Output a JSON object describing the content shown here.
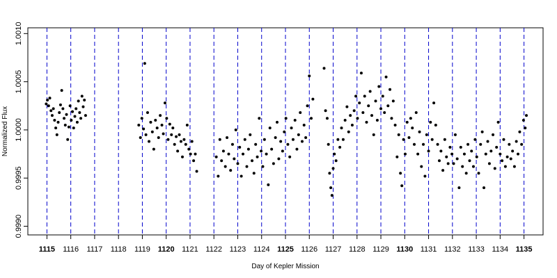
{
  "chart_data": {
    "type": "scatter",
    "x_label": "Day of Kepler Mission",
    "y_label": "Normalized Flux",
    "color": "#000000",
    "grid": true,
    "grid_color": "#0000cc",
    "xlim": [
      1114.2,
      1135.8
    ],
    "ylim": [
      0.99891,
      1.00106
    ],
    "xticks": [
      1115,
      1116,
      1117,
      1118,
      1119,
      1120,
      1121,
      1122,
      1123,
      1124,
      1125,
      1126,
      1127,
      1128,
      1129,
      1130,
      1131,
      1132,
      1133,
      1134,
      1135
    ],
    "yticks": [
      {
        "value": 0.999,
        "label": "0.9990"
      },
      {
        "value": 0.9995,
        "label": "0.9995"
      },
      {
        "value": 1,
        "label": "1.0000"
      },
      {
        "value": 1.0005,
        "label": "1.0005"
      },
      {
        "value": 1.001,
        "label": "1.0010"
      }
    ],
    "x": [
      1114.97,
      1115.02,
      1115.07,
      1115.12,
      1115.17,
      1115.22,
      1115.27,
      1115.32,
      1115.37,
      1115.42,
      1115.47,
      1115.52,
      1115.57,
      1115.62,
      1115.67,
      1115.72,
      1115.77,
      1115.82,
      1115.87,
      1115.92,
      1115.97,
      1116.02,
      1116.07,
      1116.12,
      1116.17,
      1116.22,
      1116.27,
      1116.32,
      1116.37,
      1116.42,
      1116.47,
      1116.52,
      1116.57,
      1116.62,
      1118.85,
      1118.92,
      1118.98,
      1119.05,
      1119.1,
      1119.15,
      1119.22,
      1119.28,
      1119.35,
      1119.42,
      1119.48,
      1119.55,
      1119.62,
      1119.68,
      1119.75,
      1119.82,
      1119.88,
      1119.95,
      1120.02,
      1120.08,
      1120.15,
      1120.22,
      1120.28,
      1120.35,
      1120.42,
      1120.48,
      1120.55,
      1120.62,
      1120.68,
      1120.75,
      1120.82,
      1120.88,
      1120.95,
      1121.02,
      1121.08,
      1121.15,
      1121.22,
      1121.28,
      1122.1,
      1122.18,
      1122.25,
      1122.32,
      1122.4,
      1122.48,
      1122.55,
      1122.62,
      1122.7,
      1122.78,
      1122.85,
      1122.92,
      1123,
      1123.08,
      1123.15,
      1123.22,
      1123.3,
      1123.38,
      1123.45,
      1123.52,
      1123.6,
      1123.68,
      1123.75,
      1123.82,
      1123.9,
      1123.98,
      1124.05,
      1124.12,
      1124.2,
      1124.28,
      1124.35,
      1124.42,
      1124.5,
      1124.58,
      1124.65,
      1124.72,
      1124.8,
      1124.88,
      1124.95,
      1125.02,
      1125.1,
      1125.18,
      1125.25,
      1125.32,
      1125.4,
      1125.48,
      1125.55,
      1125.62,
      1125.7,
      1125.78,
      1125.85,
      1125.92,
      1126,
      1126.08,
      1126.15,
      1126.62,
      1126.68,
      1126.75,
      1126.8,
      1126.85,
      1126.9,
      1126.95,
      1127,
      1127.05,
      1127.12,
      1127.2,
      1127.28,
      1127.35,
      1127.42,
      1127.5,
      1127.58,
      1127.65,
      1127.72,
      1127.8,
      1127.88,
      1127.95,
      1128.02,
      1128.1,
      1128.18,
      1128.25,
      1128.32,
      1128.4,
      1128.48,
      1128.55,
      1128.62,
      1128.7,
      1128.78,
      1128.85,
      1128.92,
      1129,
      1129.08,
      1129.15,
      1129.22,
      1129.3,
      1129.38,
      1129.45,
      1129.52,
      1129.6,
      1129.68,
      1129.75,
      1129.82,
      1129.88,
      1129.95,
      1130.02,
      1130.1,
      1130.18,
      1130.25,
      1130.32,
      1130.4,
      1130.48,
      1130.55,
      1130.62,
      1130.7,
      1130.78,
      1130.85,
      1130.92,
      1131,
      1131.08,
      1131.15,
      1131.22,
      1131.3,
      1131.38,
      1131.45,
      1131.52,
      1131.6,
      1131.68,
      1131.75,
      1131.82,
      1131.9,
      1131.98,
      1132.05,
      1132.12,
      1132.2,
      1132.28,
      1132.35,
      1132.42,
      1132.5,
      1132.58,
      1132.65,
      1132.72,
      1132.8,
      1132.88,
      1132.95,
      1133.02,
      1133.1,
      1133.18,
      1133.25,
      1133.32,
      1133.4,
      1133.48,
      1133.55,
      1133.62,
      1133.7,
      1133.78,
      1133.85,
      1133.92,
      1134,
      1134.08,
      1134.15,
      1134.22,
      1134.3,
      1134.38,
      1134.45,
      1134.52,
      1134.6,
      1134.68,
      1134.75,
      1134.82,
      1134.9,
      1134.98,
      1135.05,
      1135.1
    ],
    "values": [
      1.00027,
      1.00031,
      1.00025,
      1.00033,
      1.0002,
      1.00015,
      1.00022,
      1.0001,
      1.00002,
      0.99995,
      1.00008,
      1.00018,
      1.00026,
      1.00041,
      1.00022,
      1.00012,
      1.00005,
      1.00016,
      0.9999,
      1.00003,
      1.00025,
      1.0001,
      1.00019,
      1.00002,
      1.00014,
      1.00022,
      1.00008,
      1.0003,
      1.00018,
      1.00012,
      1.00035,
      1.00024,
      1.00031,
      1.00015,
      1.00005,
      0.99992,
      1.00012,
      1.00001,
      1.00069,
      0.99995,
      1.00018,
      0.99988,
      1.00008,
      0.99998,
      0.9998,
      1.0001,
      1.00002,
      0.99992,
      1.00015,
      1.00005,
      0.99996,
      1.00028,
      1.00012,
      0.9999,
      1.00006,
      0.99995,
      1.00002,
      0.99985,
      0.99993,
      0.99978,
      0.99995,
      0.99988,
      0.99972,
      0.9999,
      0.99985,
      1.00005,
      0.9998,
      0.99975,
      0.99988,
      0.99968,
      0.99975,
      0.99957,
      0.99972,
      0.99952,
      0.9999,
      0.99968,
      0.99978,
      0.99962,
      0.99992,
      0.99975,
      0.99958,
      0.99985,
      0.9997,
      1.0,
      0.99965,
      0.99982,
      0.99952,
      0.99975,
      0.9999,
      0.99962,
      0.9998,
      0.99995,
      0.99968,
      0.99955,
      0.99985,
      0.99972,
      1.00012,
      0.99978,
      0.99962,
      0.9999,
      0.99975,
      0.99943,
      1.00002,
      0.9998,
      0.99965,
      0.99992,
      1.00008,
      0.9997,
      0.99988,
      0.99978,
      0.99998,
      1.00012,
      0.99985,
      0.99972,
      1.00002,
      0.9999,
      1.0001,
      0.9998,
      0.99995,
      1.00018,
      0.99988,
      1.00005,
      0.99992,
      1.00025,
      1.00056,
      1.00012,
      1.00032,
      1.00064,
      1.0002,
      1.00012,
      0.99985,
      0.99955,
      0.9994,
      0.99932,
      0.9996,
      0.99975,
      0.99968,
      0.9999,
      0.99982,
      1.00002,
      0.9999,
      1.0001,
      1.00024,
      0.99998,
      1.00015,
      1.00005,
      1.0002,
      1.00035,
      1.00012,
      1.00028,
      1.00059,
      1.00018,
      1.00035,
      1.00008,
      1.00025,
      1.0004,
      1.00015,
      0.99995,
      1.0003,
      1.0001,
      1.00045,
      1.00022,
      1.00035,
      1.00018,
      1.00055,
      1.00025,
      1.00042,
      1.00012,
      1.0003,
      1.00005,
      0.99972,
      0.99995,
      0.99955,
      0.99942,
      0.9999,
      0.99975,
      1.00008,
      0.99992,
      1.00012,
      1.00002,
      0.99985,
      1.00018,
      0.99975,
      0.99998,
      0.99962,
      0.99985,
      0.99952,
      0.99995,
      0.99978,
      1.00008,
      0.9999,
      1.00028,
      1.00005,
      0.99985,
      0.99968,
      0.99978,
      0.99958,
      0.9999,
      0.99972,
      0.99965,
      0.99982,
      0.99975,
      0.99965,
      0.99995,
      0.9997,
      0.9994,
      0.99982,
      0.99962,
      0.99975,
      0.99955,
      0.99985,
      0.99968,
      0.99978,
      0.99962,
      0.9999,
      0.99972,
      0.99955,
      0.99985,
      0.99998,
      0.9994,
      0.99975,
      0.99988,
      0.99965,
      0.99978,
      0.99995,
      0.9996,
      0.99982,
      1.00008,
      0.99975,
      0.99968,
      0.9999,
      0.99962,
      0.99972,
      0.99985,
      0.9997,
      0.99978,
      0.99962,
      0.99988,
      0.99975,
      0.99998,
      0.99985,
      1.0001,
      1.00002,
      1.00015
    ]
  }
}
